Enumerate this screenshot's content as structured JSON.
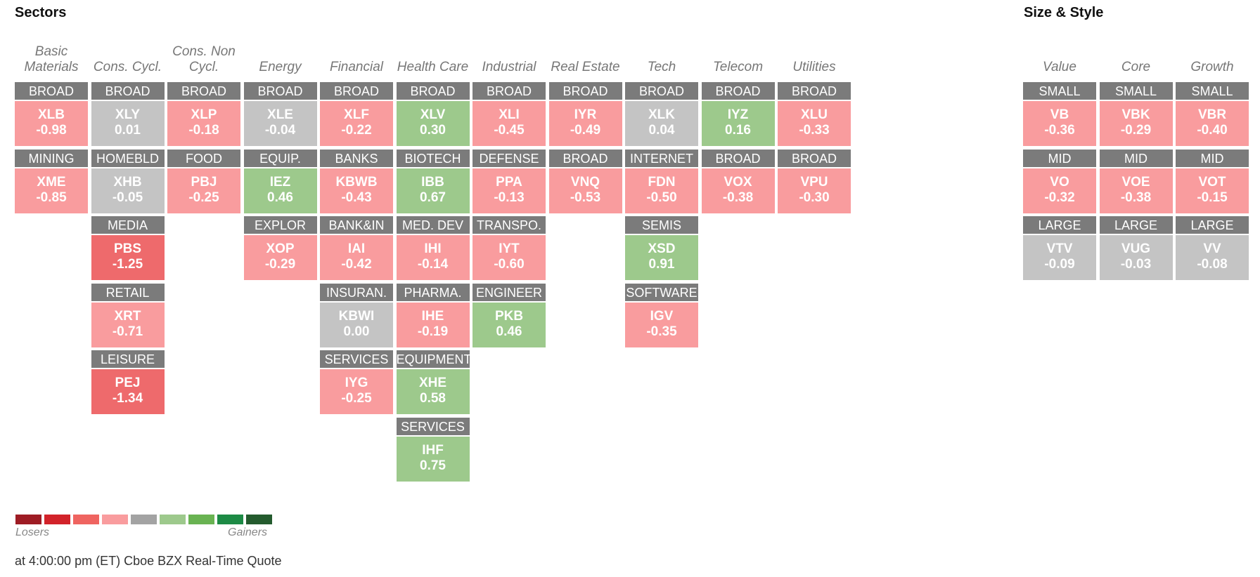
{
  "titles": {
    "sectors": "Sectors",
    "size_style": "Size & Style"
  },
  "sector_headers": [
    "Basic Materials",
    "Cons. Cycl.",
    "Cons. Non Cycl.",
    "Energy",
    "Financial",
    "Health Care",
    "Industrial",
    "Real Estate",
    "Tech",
    "Telecom",
    "Utilities"
  ],
  "style_headers": [
    "Value",
    "Core",
    "Growth"
  ],
  "colors": {
    "tile_header": "#7b7b7b",
    "neutral": "#c4c4c4",
    "loser_light": "#f99c9e",
    "loser_mid": "#ee6a6c",
    "gainer_light": "#9dc98c"
  },
  "sectors": [
    [
      {
        "cat": "BROAD",
        "sym": "XLB",
        "chg": "-0.98",
        "color": "#f99c9e"
      },
      {
        "cat": "MINING",
        "sym": "XME",
        "chg": "-0.85",
        "color": "#f99c9e"
      }
    ],
    [
      {
        "cat": "BROAD",
        "sym": "XLY",
        "chg": "0.01",
        "color": "#c4c4c4"
      },
      {
        "cat": "HOMEBLD",
        "sym": "XHB",
        "chg": "-0.05",
        "color": "#c4c4c4"
      },
      {
        "cat": "MEDIA",
        "sym": "PBS",
        "chg": "-1.25",
        "color": "#ee6a6c"
      },
      {
        "cat": "RETAIL",
        "sym": "XRT",
        "chg": "-0.71",
        "color": "#f99c9e"
      },
      {
        "cat": "LEISURE",
        "sym": "PEJ",
        "chg": "-1.34",
        "color": "#ee6a6c"
      }
    ],
    [
      {
        "cat": "BROAD",
        "sym": "XLP",
        "chg": "-0.18",
        "color": "#f99c9e"
      },
      {
        "cat": "FOOD",
        "sym": "PBJ",
        "chg": "-0.25",
        "color": "#f99c9e"
      }
    ],
    [
      {
        "cat": "BROAD",
        "sym": "XLE",
        "chg": "-0.04",
        "color": "#c4c4c4"
      },
      {
        "cat": "EQUIP.",
        "sym": "IEZ",
        "chg": "0.46",
        "color": "#9dc98c"
      },
      {
        "cat": "EXPLOR",
        "sym": "XOP",
        "chg": "-0.29",
        "color": "#f99c9e"
      }
    ],
    [
      {
        "cat": "BROAD",
        "sym": "XLF",
        "chg": "-0.22",
        "color": "#f99c9e"
      },
      {
        "cat": "BANKS",
        "sym": "KBWB",
        "chg": "-0.43",
        "color": "#f99c9e"
      },
      {
        "cat": "BANK&IN",
        "sym": "IAI",
        "chg": "-0.42",
        "color": "#f99c9e"
      },
      {
        "cat": "INSURAN.",
        "sym": "KBWI",
        "chg": "0.00",
        "color": "#c4c4c4"
      },
      {
        "cat": "SERVICES",
        "sym": "IYG",
        "chg": "-0.25",
        "color": "#f99c9e"
      }
    ],
    [
      {
        "cat": "BROAD",
        "sym": "XLV",
        "chg": "0.30",
        "color": "#9dc98c"
      },
      {
        "cat": "BIOTECH",
        "sym": "IBB",
        "chg": "0.67",
        "color": "#9dc98c"
      },
      {
        "cat": "MED. DEV",
        "sym": "IHI",
        "chg": "-0.14",
        "color": "#f99c9e"
      },
      {
        "cat": "PHARMA.",
        "sym": "IHE",
        "chg": "-0.19",
        "color": "#f99c9e"
      },
      {
        "cat": "EQUIPMENT",
        "sym": "XHE",
        "chg": "0.58",
        "color": "#9dc98c"
      },
      {
        "cat": "SERVICES",
        "sym": "IHF",
        "chg": "0.75",
        "color": "#9dc98c"
      }
    ],
    [
      {
        "cat": "BROAD",
        "sym": "XLI",
        "chg": "-0.45",
        "color": "#f99c9e"
      },
      {
        "cat": "DEFENSE",
        "sym": "PPA",
        "chg": "-0.13",
        "color": "#f99c9e"
      },
      {
        "cat": "TRANSPO.",
        "sym": "IYT",
        "chg": "-0.60",
        "color": "#f99c9e"
      },
      {
        "cat": "ENGINEER",
        "sym": "PKB",
        "chg": "0.46",
        "color": "#9dc98c"
      }
    ],
    [
      {
        "cat": "BROAD",
        "sym": "IYR",
        "chg": "-0.49",
        "color": "#f99c9e"
      },
      {
        "cat": "BROAD",
        "sym": "VNQ",
        "chg": "-0.53",
        "color": "#f99c9e"
      }
    ],
    [
      {
        "cat": "BROAD",
        "sym": "XLK",
        "chg": "0.04",
        "color": "#c4c4c4"
      },
      {
        "cat": "INTERNET",
        "sym": "FDN",
        "chg": "-0.50",
        "color": "#f99c9e"
      },
      {
        "cat": "SEMIS",
        "sym": "XSD",
        "chg": "0.91",
        "color": "#9dc98c"
      },
      {
        "cat": "SOFTWARE",
        "sym": "IGV",
        "chg": "-0.35",
        "color": "#f99c9e"
      }
    ],
    [
      {
        "cat": "BROAD",
        "sym": "IYZ",
        "chg": "0.16",
        "color": "#9dc98c"
      },
      {
        "cat": "BROAD",
        "sym": "VOX",
        "chg": "-0.38",
        "color": "#f99c9e"
      }
    ],
    [
      {
        "cat": "BROAD",
        "sym": "XLU",
        "chg": "-0.33",
        "color": "#f99c9e"
      },
      {
        "cat": "BROAD",
        "sym": "VPU",
        "chg": "-0.30",
        "color": "#f99c9e"
      }
    ]
  ],
  "styles": [
    [
      {
        "cat": "SMALL",
        "sym": "VB",
        "chg": "-0.36",
        "color": "#f99c9e"
      },
      {
        "cat": "MID",
        "sym": "VO",
        "chg": "-0.32",
        "color": "#f99c9e"
      },
      {
        "cat": "LARGE",
        "sym": "VTV",
        "chg": "-0.09",
        "color": "#c4c4c4"
      }
    ],
    [
      {
        "cat": "SMALL",
        "sym": "VBK",
        "chg": "-0.29",
        "color": "#f99c9e"
      },
      {
        "cat": "MID",
        "sym": "VOE",
        "chg": "-0.38",
        "color": "#f99c9e"
      },
      {
        "cat": "LARGE",
        "sym": "VUG",
        "chg": "-0.03",
        "color": "#c4c4c4"
      }
    ],
    [
      {
        "cat": "SMALL",
        "sym": "VBR",
        "chg": "-0.40",
        "color": "#f99c9e"
      },
      {
        "cat": "MID",
        "sym": "VOT",
        "chg": "-0.15",
        "color": "#f99c9e"
      },
      {
        "cat": "LARGE",
        "sym": "VV",
        "chg": "-0.08",
        "color": "#c4c4c4"
      }
    ]
  ],
  "legend": {
    "swatches": [
      "#9e1c24",
      "#d2232a",
      "#ef6460",
      "#f99c9e",
      "#a3a3a3",
      "#9dc98c",
      "#69b352",
      "#1d8a45",
      "#245b2e"
    ],
    "losers_label": "Losers",
    "gainers_label": "Gainers"
  },
  "footer": "at 4:00:00 pm (ET) Cboe BZX Real-Time Quote"
}
